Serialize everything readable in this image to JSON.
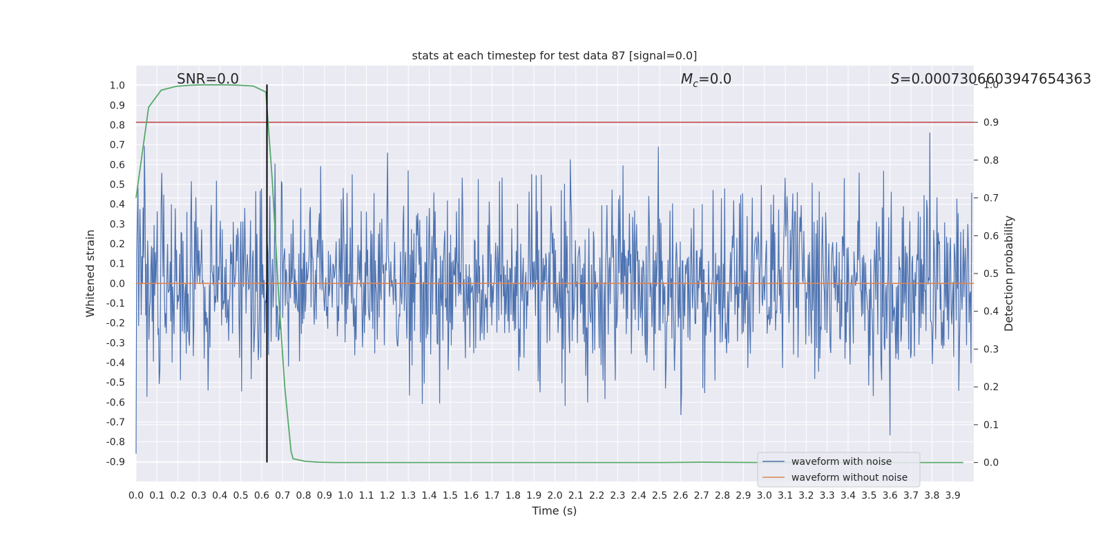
{
  "chart_data": {
    "type": "line",
    "title": "stats at each timestep for test data 87 [signal=0.0]",
    "xlabel": "Time (s)",
    "ylabel": "Whitened strain",
    "y2label": "Detection probability",
    "xlim": [
      0.0,
      4.0
    ],
    "ylim": [
      -1.0,
      1.1
    ],
    "y2lim": [
      -0.05,
      1.05
    ],
    "x_ticks": [
      "0.0",
      "0.1",
      "0.2",
      "0.3",
      "0.4",
      "0.5",
      "0.6",
      "0.7",
      "0.8",
      "0.9",
      "1.0",
      "1.1",
      "1.2",
      "1.3",
      "1.4",
      "1.5",
      "1.6",
      "1.7",
      "1.8",
      "1.9",
      "2.0",
      "2.1",
      "2.2",
      "2.3",
      "2.4",
      "2.5",
      "2.6",
      "2.7",
      "2.8",
      "2.9",
      "3.0",
      "3.1",
      "3.2",
      "3.3",
      "3.4",
      "3.5",
      "3.6",
      "3.7",
      "3.8",
      "3.9"
    ],
    "y_ticks": [
      "1.0",
      "0.9",
      "0.8",
      "0.7",
      "0.6",
      "0.5",
      "0.4",
      "0.3",
      "0.2",
      "0.1",
      "0.0",
      "-0.1",
      "-0.2",
      "-0.3",
      "-0.4",
      "-0.5",
      "-0.6",
      "-0.7",
      "-0.8",
      "-0.9"
    ],
    "y2_ticks": [
      "1.0",
      "0.9",
      "0.8",
      "0.7",
      "0.6",
      "0.5",
      "0.4",
      "0.3",
      "0.2",
      "0.1",
      "0.0"
    ],
    "annotations": {
      "snr": "SNR=0.0",
      "mc_symbol": "M",
      "mc_sub": "c",
      "mc_value": "=0.0",
      "s_symbol": "S",
      "s_value": "=0.0007306603947654363"
    },
    "legend": {
      "placement": "bottom-right",
      "entries": [
        "waveform with noise",
        "waveform without noise"
      ]
    },
    "series": [
      {
        "name": "waveform with noise",
        "color": "#4c72b0",
        "description": "whitened strain noise",
        "samples": 1300
      },
      {
        "name": "waveform without noise",
        "color": "#dd8452",
        "values_constant": 0.0
      },
      {
        "name": "detection probability",
        "color": "#55a868",
        "axis": "right",
        "x": [
          0.0,
          0.06,
          0.12,
          0.19,
          0.25,
          0.31,
          0.37,
          0.44,
          0.5,
          0.56,
          0.62,
          0.65,
          0.68,
          0.71,
          0.74,
          0.75,
          0.81,
          0.87,
          0.95,
          1.5,
          2.0,
          2.5,
          2.7,
          3.0,
          3.5,
          3.95
        ],
        "values": [
          0.7,
          0.94,
          0.985,
          0.995,
          0.998,
          0.999,
          0.999,
          0.999,
          0.998,
          0.996,
          0.98,
          0.75,
          0.45,
          0.2,
          0.03,
          0.01,
          0.003,
          0.001,
          0.0,
          0.0,
          0.0,
          0.0,
          0.001,
          0.0,
          0.0,
          0.0
        ]
      }
    ],
    "threshold_line": {
      "value": 0.9,
      "axis": "right",
      "color": "#c44e52"
    },
    "vertical_marker": {
      "x": 0.625,
      "color": "#000000"
    }
  }
}
